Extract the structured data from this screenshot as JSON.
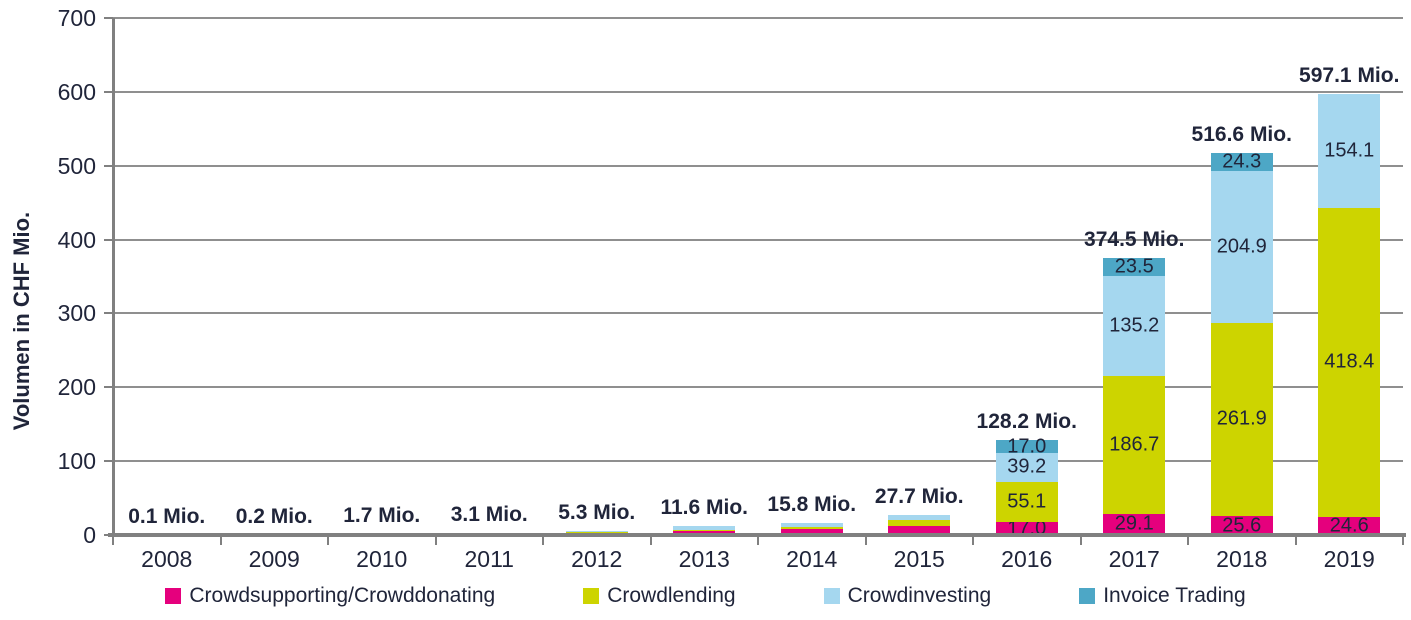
{
  "chart_data": {
    "type": "bar",
    "stacked": true,
    "ylabel": "Volumen in CHF Mio.",
    "ylim": [
      0,
      700
    ],
    "yticks": [
      0,
      100,
      200,
      300,
      400,
      500,
      600,
      700
    ],
    "grid": true,
    "legend_position": "bottom",
    "categories": [
      "2008",
      "2009",
      "2010",
      "2011",
      "2012",
      "2013",
      "2014",
      "2015",
      "2016",
      "2017",
      "2018",
      "2019"
    ],
    "totals": [
      0.1,
      0.2,
      1.7,
      3.1,
      5.3,
      11.6,
      15.8,
      27.7,
      128.2,
      374.5,
      516.6,
      597.1
    ],
    "total_labels": [
      "0.1 Mio.",
      "0.2 Mio.",
      "1.7 Mio.",
      "3.1 Mio.",
      "5.3 Mio.",
      "11.6 Mio.",
      "15.8 Mio.",
      "27.7 Mio.",
      "128.2 Mio.",
      "374.5 Mio.",
      "516.6 Mio.",
      "597.1 Mio."
    ],
    "series": [
      {
        "name": "Crowdsupporting/Crowddonating",
        "color": "#e5007d",
        "values": [
          0.1,
          0.2,
          1.2,
          1.1,
          2.5,
          5.8,
          7.7,
          12.3,
          17.0,
          29.1,
          25.6,
          24.6
        ]
      },
      {
        "name": "Crowdlending",
        "color": "#cdd400",
        "values": [
          0,
          0,
          0.5,
          0.2,
          1.9,
          1.1,
          3.5,
          7.9,
          55.1,
          186.7,
          261.9,
          418.4
        ]
      },
      {
        "name": "Crowdinvesting",
        "color": "#a5d7ef",
        "values": [
          0,
          0,
          0,
          1.8,
          0.9,
          4.7,
          4.6,
          7.5,
          39.2,
          135.2,
          204.9,
          154.1
        ]
      },
      {
        "name": "Invoice Trading",
        "color": "#4da7c6",
        "values": [
          0,
          0,
          0,
          0,
          0,
          0,
          0,
          0,
          17.0,
          23.5,
          24.3,
          0
        ]
      }
    ],
    "segment_labels_shown": {
      "2016": [
        17.0,
        55.1,
        39.2,
        17.0
      ],
      "2017": [
        29.1,
        186.7,
        135.2,
        23.5
      ],
      "2018": [
        25.6,
        261.9,
        204.9,
        24.3
      ],
      "2019": [
        24.6,
        418.4,
        154.1
      ]
    },
    "segment_label_min_value": 15,
    "colors": {
      "grid": "#8f8f8f",
      "axis": "#808080",
      "text": "#20253a"
    }
  }
}
